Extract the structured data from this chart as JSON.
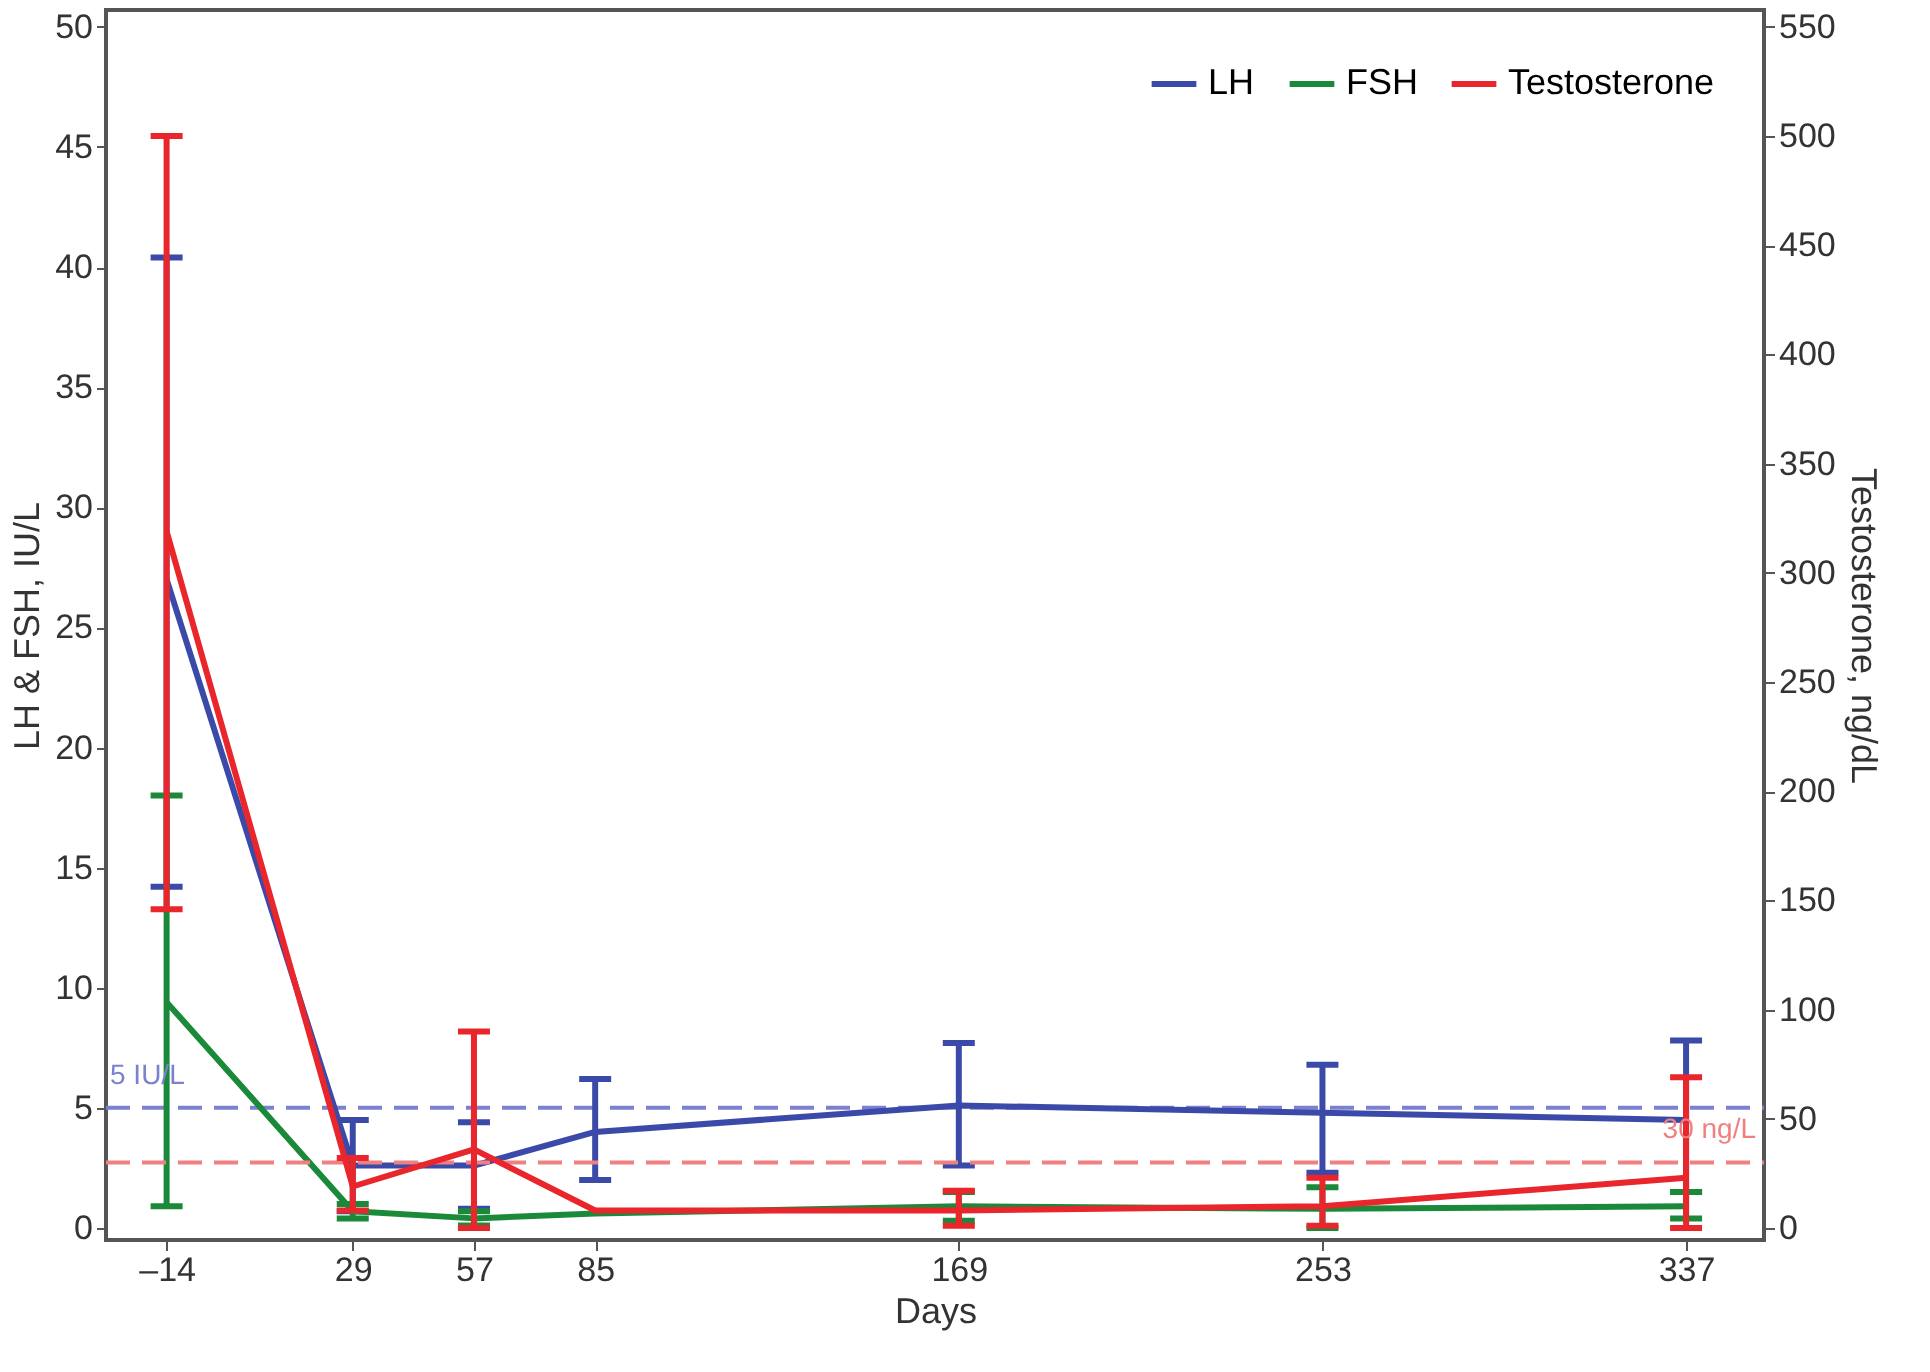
{
  "chart_data": {
    "type": "line",
    "xlabel": "Days",
    "ylabel": "LH & FSH, IU/L",
    "y2label": "Testosterone, ng/dL",
    "x": [
      -14,
      29,
      57,
      85,
      169,
      253,
      337
    ],
    "xlim": [
      -28,
      355
    ],
    "xticks": [
      {
        "value": -14,
        "label": "–14"
      },
      29,
      57,
      85,
      169,
      253,
      337
    ],
    "ylim": [
      -0.5,
      50.7
    ],
    "yticks": [
      0,
      5,
      10,
      15,
      20,
      25,
      30,
      35,
      40,
      45,
      50
    ],
    "y2lim": [
      -5.5,
      557.7
    ],
    "y2ticks": [
      0,
      50,
      100,
      150,
      200,
      250,
      300,
      350,
      400,
      450,
      500,
      550
    ],
    "series": [
      {
        "name": "LH",
        "color": "#3b4aa8",
        "values": [
          27.0,
          2.6,
          2.6,
          4.0,
          5.1,
          4.8,
          4.5
        ],
        "errors": [
          [
            14.2,
            40.4
          ],
          [
            0.7,
            4.5
          ],
          [
            0.8,
            4.4
          ],
          [
            2.0,
            6.2
          ],
          [
            2.6,
            7.7
          ],
          [
            2.3,
            6.8
          ],
          [
            1.5,
            7.8
          ]
        ]
      },
      {
        "name": "FSH",
        "color": "#1a8a3a",
        "values": [
          9.4,
          0.7,
          0.4,
          0.6,
          0.9,
          0.8,
          0.9
        ],
        "errors": [
          [
            0.9,
            18.0
          ],
          [
            0.4,
            1.0
          ],
          [
            0.1,
            0.7
          ],
          null,
          [
            0.3,
            1.5
          ],
          [
            0.0,
            1.7
          ],
          [
            0.4,
            1.5
          ]
        ]
      },
      {
        "name": "Testosterone",
        "color": "#e8262b",
        "axis": "y2",
        "values": [
          319,
          19,
          36,
          8,
          8,
          10,
          23
        ],
        "errors": [
          [
            146,
            500
          ],
          [
            8,
            32
          ],
          [
            0,
            90
          ],
          null,
          [
            1,
            17
          ],
          [
            1,
            23
          ],
          [
            0,
            69
          ]
        ]
      }
    ],
    "ref_lines": [
      {
        "axis": "y",
        "value": 5,
        "label": "5 IU/L",
        "color": "#7b80d0",
        "line_style": "dashed"
      },
      {
        "axis": "y2",
        "value": 30,
        "label": "30 ng/L",
        "color": "#f08080",
        "line_style": "dashed"
      }
    ],
    "legend": "top right",
    "grid": false,
    "marker": "none",
    "line_style": "solid"
  }
}
